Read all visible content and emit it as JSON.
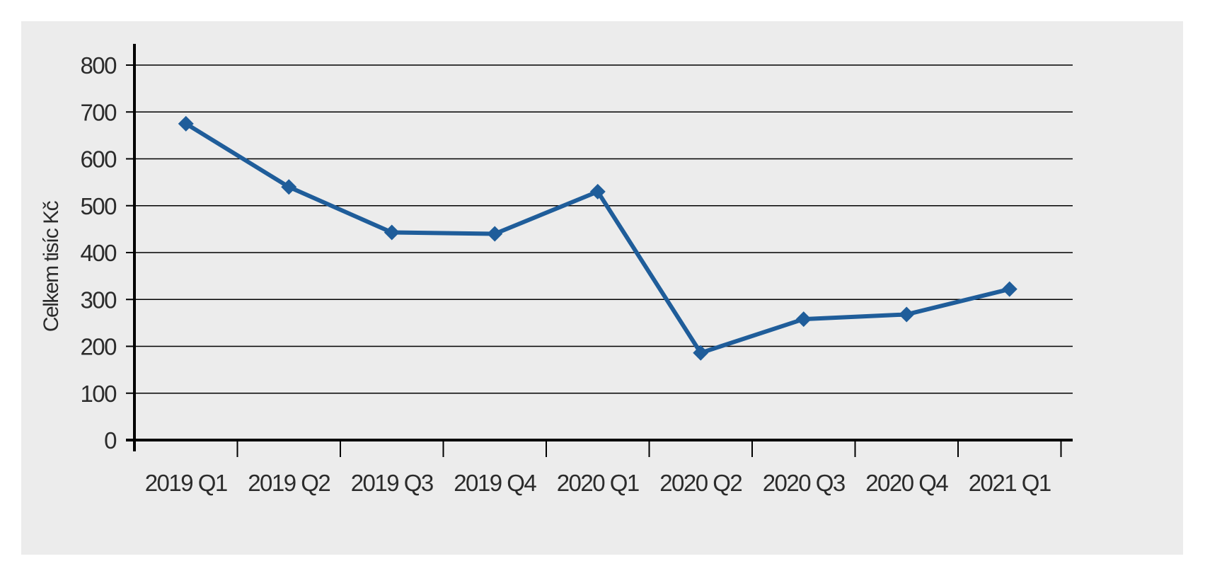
{
  "chart_data": {
    "type": "line",
    "title": "",
    "xlabel": "",
    "ylabel": "Celkem tisíc Kč",
    "categories": [
      "2019 Q1",
      "2019 Q2",
      "2019 Q3",
      "2019 Q4",
      "2020 Q1",
      "2020 Q2",
      "2020 Q3",
      "2020 Q4",
      "2021 Q1"
    ],
    "series": [
      {
        "values": [
          675,
          540,
          443,
          440,
          530,
          186,
          258,
          268,
          322
        ]
      }
    ],
    "ylim": [
      0,
      800
    ],
    "yticks": [
      "0",
      "100",
      "200",
      "300",
      "400",
      "500",
      "600",
      "700",
      "800"
    ],
    "grid": true,
    "legend": "none",
    "marker": "diamond",
    "colors": {
      "series": "#1f5d9a",
      "axis": "#000000",
      "grid": "#000000",
      "panel": "#ececec"
    }
  }
}
